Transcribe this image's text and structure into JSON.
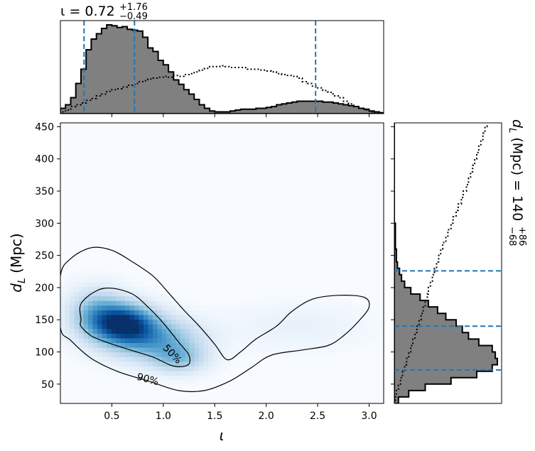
{
  "chart_data": {
    "type": "corner",
    "colors": {
      "posterior_fill": "#808080",
      "dashed_lines": "#1f77b4",
      "density_cmap": "Blues"
    },
    "top_histogram": {
      "title": {
        "prefix": "ι = 0.72",
        "upper": "+1.76",
        "lower": "−0.49"
      },
      "xlim": [
        0,
        3.1416
      ],
      "quantile_lines": [
        0.23,
        0.72,
        2.48
      ],
      "bins": [
        0.0,
        0.05,
        0.1,
        0.15,
        0.2,
        0.25,
        0.3,
        0.35,
        0.4,
        0.45,
        0.5,
        0.55,
        0.6,
        0.65,
        0.7,
        0.75,
        0.8,
        0.85,
        0.9,
        0.95,
        1.0,
        1.05,
        1.1,
        1.15,
        1.2,
        1.25,
        1.3,
        1.35,
        1.4,
        1.45,
        1.5,
        1.55,
        1.6,
        1.65,
        1.7,
        1.75,
        1.8,
        1.85,
        1.9,
        1.95,
        2.0,
        2.05,
        2.1,
        2.15,
        2.2,
        2.25,
        2.3,
        2.35,
        2.4,
        2.45,
        2.5,
        2.55,
        2.6,
        2.65,
        2.7,
        2.75,
        2.8,
        2.85,
        2.9,
        2.95,
        3.0,
        3.05,
        3.1
      ],
      "posterior": [
        0.06,
        0.1,
        0.18,
        0.34,
        0.5,
        0.72,
        0.84,
        0.9,
        0.96,
        1.0,
        0.99,
        0.97,
        0.98,
        0.95,
        0.94,
        0.93,
        0.86,
        0.74,
        0.7,
        0.6,
        0.55,
        0.47,
        0.38,
        0.33,
        0.27,
        0.22,
        0.16,
        0.1,
        0.06,
        0.03,
        0.02,
        0.02,
        0.02,
        0.03,
        0.04,
        0.05,
        0.05,
        0.05,
        0.06,
        0.06,
        0.07,
        0.08,
        0.1,
        0.11,
        0.12,
        0.13,
        0.14,
        0.14,
        0.14,
        0.14,
        0.14,
        0.13,
        0.13,
        0.12,
        0.11,
        0.1,
        0.09,
        0.08,
        0.06,
        0.05,
        0.03,
        0.02,
        0.01
      ],
      "prior": [
        0.02,
        0.04,
        0.08,
        0.1,
        0.12,
        0.15,
        0.17,
        0.2,
        0.22,
        0.25,
        0.27,
        0.28,
        0.3,
        0.32,
        0.33,
        0.36,
        0.37,
        0.39,
        0.4,
        0.41,
        0.42,
        0.41,
        0.43,
        0.42,
        0.44,
        0.45,
        0.47,
        0.49,
        0.51,
        0.53,
        0.53,
        0.54,
        0.53,
        0.52,
        0.52,
        0.52,
        0.5,
        0.5,
        0.5,
        0.49,
        0.48,
        0.47,
        0.45,
        0.44,
        0.43,
        0.42,
        0.4,
        0.36,
        0.34,
        0.31,
        0.29,
        0.26,
        0.24,
        0.2,
        0.18,
        0.14,
        0.11,
        0.08,
        0.06,
        0.04,
        0.02,
        0.01,
        0.01
      ]
    },
    "right_histogram": {
      "label": {
        "prefix": "d",
        "sub": "L",
        "mid": " (Mpc) = 140",
        "upper": "+86",
        "lower": "−68"
      },
      "ylim": [
        20,
        456
      ],
      "quantile_lines": [
        72,
        140,
        226
      ],
      "bins": [
        20,
        30,
        40,
        50,
        60,
        70,
        80,
        90,
        100,
        110,
        120,
        130,
        140,
        150,
        160,
        170,
        180,
        190,
        200,
        210,
        220,
        230,
        240,
        250,
        260,
        270,
        280,
        290,
        300,
        310,
        320,
        330,
        340,
        350,
        360,
        370,
        380,
        390,
        400,
        410,
        420,
        430,
        440,
        450
      ],
      "posterior": [
        0.04,
        0.14,
        0.3,
        0.55,
        0.8,
        0.95,
        1.0,
        0.98,
        0.95,
        0.82,
        0.72,
        0.66,
        0.6,
        0.5,
        0.42,
        0.33,
        0.25,
        0.16,
        0.1,
        0.07,
        0.05,
        0.03,
        0.02,
        0.02,
        0.01,
        0.01,
        0.01,
        0.01,
        0,
        0,
        0,
        0,
        0,
        0,
        0,
        0,
        0,
        0,
        0,
        0,
        0,
        0,
        0,
        0
      ],
      "prior": [
        0.01,
        0.02,
        0.04,
        0.06,
        0.08,
        0.1,
        0.12,
        0.14,
        0.16,
        0.18,
        0.2,
        0.22,
        0.24,
        0.26,
        0.28,
        0.3,
        0.32,
        0.33,
        0.35,
        0.37,
        0.39,
        0.41,
        0.43,
        0.45,
        0.47,
        0.5,
        0.52,
        0.55,
        0.57,
        0.6,
        0.62,
        0.65,
        0.67,
        0.7,
        0.72,
        0.74,
        0.76,
        0.78,
        0.8,
        0.82,
        0.84,
        0.86,
        0.88,
        0.9
      ]
    },
    "joint": {
      "xlabel": "ι",
      "ylabel": {
        "prefix": "d",
        "sub": "L",
        "suffix": " (Mpc)"
      },
      "xlim": [
        0,
        3.1416
      ],
      "ylim": [
        20,
        456
      ],
      "xticks": [
        0.5,
        1.0,
        1.5,
        2.0,
        2.5,
        3.0
      ],
      "xtick_labels": [
        "0.5",
        "1.0",
        "1.5",
        "2.0",
        "2.5",
        "3.0"
      ],
      "yticks": [
        50,
        100,
        150,
        200,
        250,
        300,
        350,
        400,
        450
      ],
      "ytick_labels": [
        "50",
        "100",
        "150",
        "200",
        "250",
        "300",
        "350",
        "400",
        "450"
      ],
      "density_blobs": [
        {
          "cx": 0.62,
          "cy": 145,
          "sx": 0.2,
          "sy": 20,
          "amp": 1.0,
          "rot": -0.55
        },
        {
          "cx": 0.9,
          "cy": 120,
          "sx": 0.3,
          "sy": 22,
          "amp": 0.55,
          "rot": -0.55
        },
        {
          "cx": 0.35,
          "cy": 160,
          "sx": 0.18,
          "sy": 25,
          "amp": 0.45,
          "rot": 0.0
        },
        {
          "cx": 1.15,
          "cy": 90,
          "sx": 0.18,
          "sy": 15,
          "amp": 0.35,
          "rot": 0.0
        },
        {
          "cx": 2.3,
          "cy": 140,
          "sx": 0.45,
          "sy": 25,
          "amp": 0.06,
          "rot": 0.0
        }
      ],
      "contour_50": [
        [
          0.2,
          150
        ],
        [
          0.2,
          175
        ],
        [
          0.35,
          195
        ],
        [
          0.5,
          199
        ],
        [
          0.7,
          190
        ],
        [
          0.85,
          170
        ],
        [
          1.0,
          145
        ],
        [
          1.15,
          115
        ],
        [
          1.25,
          95
        ],
        [
          1.24,
          80
        ],
        [
          1.1,
          78
        ],
        [
          0.9,
          92
        ],
        [
          0.7,
          102
        ],
        [
          0.45,
          115
        ],
        [
          0.3,
          125
        ],
        [
          0.2,
          140
        ]
      ],
      "contour_90": [
        [
          0.0,
          218
        ],
        [
          0.1,
          245
        ],
        [
          0.3,
          262
        ],
        [
          0.5,
          258
        ],
        [
          0.7,
          240
        ],
        [
          0.9,
          218
        ],
        [
          1.05,
          192
        ],
        [
          1.2,
          165
        ],
        [
          1.35,
          140
        ],
        [
          1.5,
          112
        ],
        [
          1.62,
          88
        ],
        [
          1.75,
          100
        ],
        [
          1.9,
          120
        ],
        [
          2.1,
          140
        ],
        [
          2.25,
          163
        ],
        [
          2.45,
          182
        ],
        [
          2.7,
          188
        ],
        [
          2.95,
          185
        ],
        [
          3.0,
          170
        ],
        [
          2.9,
          148
        ],
        [
          2.75,
          125
        ],
        [
          2.6,
          110
        ],
        [
          2.35,
          103
        ],
        [
          2.05,
          95
        ],
        [
          1.85,
          75
        ],
        [
          1.65,
          55
        ],
        [
          1.4,
          40
        ],
        [
          1.15,
          40
        ],
        [
          0.85,
          55
        ],
        [
          0.55,
          70
        ],
        [
          0.3,
          90
        ],
        [
          0.1,
          118
        ],
        [
          0.0,
          138
        ]
      ],
      "contour_labels": [
        {
          "text": "50%",
          "x": 1.09,
          "y": 97,
          "rot": 46
        },
        {
          "text": "90%",
          "x": 0.85,
          "y": 58,
          "rot": 15
        }
      ]
    }
  }
}
